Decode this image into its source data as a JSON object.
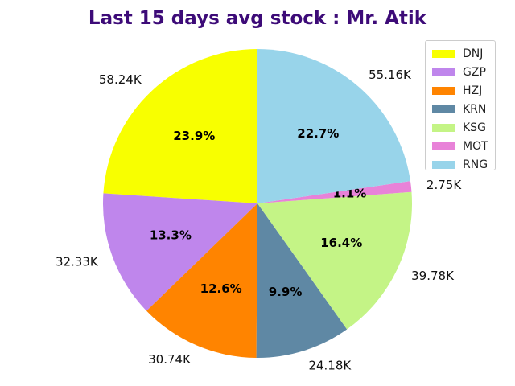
{
  "chart_data": {
    "type": "pie",
    "title": "Last 15 days avg stock : Mr. Atik",
    "categories": [
      "DNJ",
      "GZP",
      "HZJ",
      "KRN",
      "KSG",
      "MOT",
      "RNG"
    ],
    "values": [
      58.24,
      32.33,
      30.74,
      24.18,
      39.78,
      2.75,
      55.16
    ],
    "value_labels": [
      "58.24K",
      "32.33K",
      "30.74K",
      "24.18K",
      "39.78K",
      "2.75K",
      "55.16K"
    ],
    "percent_labels": [
      "23.9%",
      "13.3%",
      "12.6%",
      "9.9%",
      "16.4%",
      "1.1%",
      "22.7%"
    ],
    "colors": [
      "#f8ff00",
      "#bf86ec",
      "#ff8400",
      "#5f88a4",
      "#c4f486",
      "#e882d8",
      "#98d4ea"
    ],
    "start_angle": 90,
    "direction": "counterclockwise",
    "legend_position": "top-right"
  }
}
